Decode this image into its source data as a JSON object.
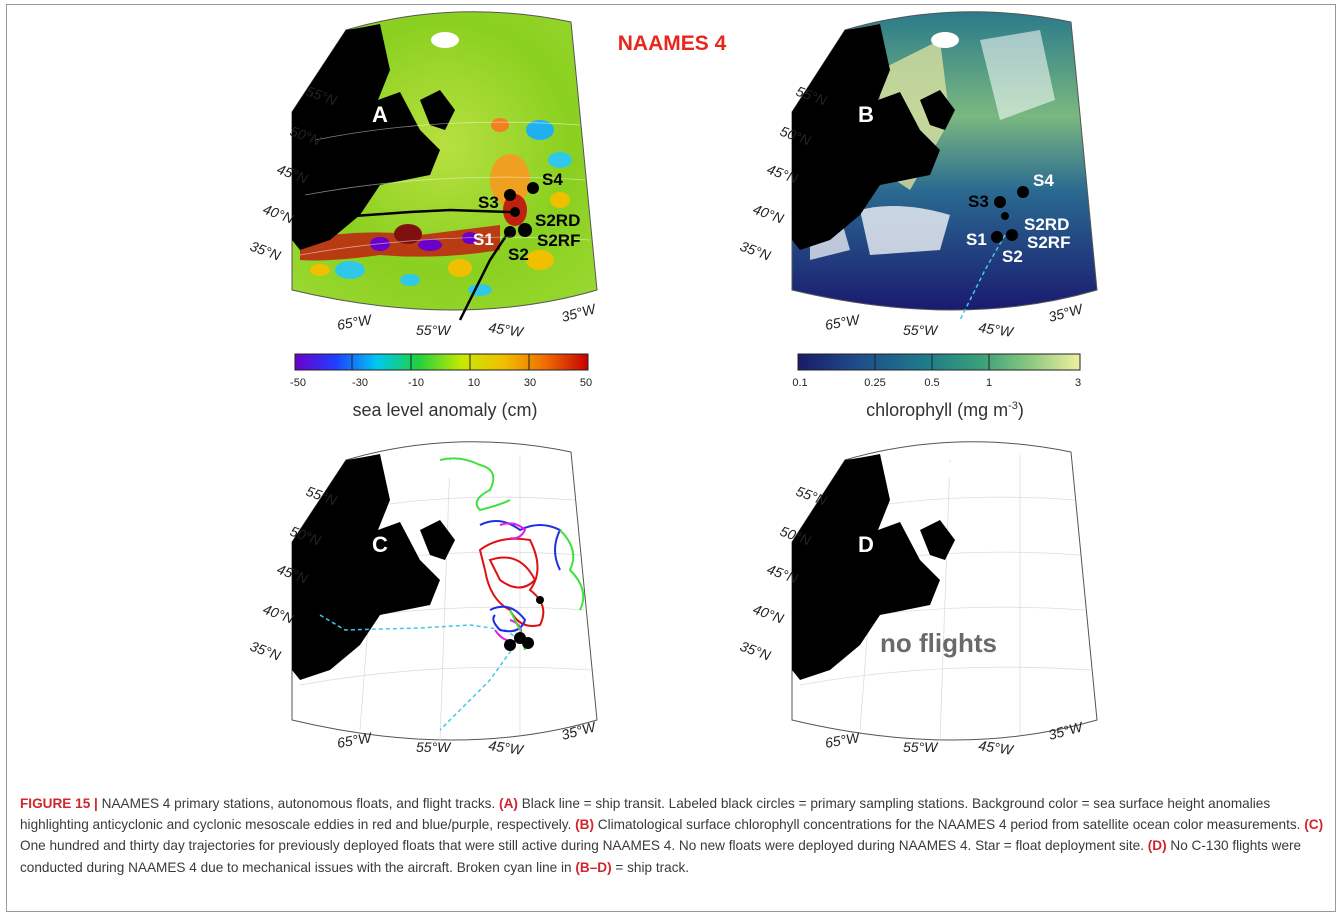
{
  "figure_title": "NAAMES 4",
  "panels": {
    "A": {
      "letter": "A"
    },
    "B": {
      "letter": "B"
    },
    "C": {
      "letter": "C"
    },
    "D": {
      "letter": "D",
      "note": "no flights"
    }
  },
  "lat_labels": [
    "55°N",
    "50°N",
    "45°N",
    "40°N",
    "35°N"
  ],
  "lon_labels": [
    "65°W",
    "55°W",
    "45°W",
    "35°W"
  ],
  "stations_a": [
    "S3",
    "S4",
    "S2RD",
    "S1",
    "S2RF",
    "S2"
  ],
  "stations_b": [
    "S3",
    "S4",
    "S2RD",
    "S1",
    "S2RF",
    "S2"
  ],
  "colorbar_sla": {
    "ticks": [
      "-50",
      "-30",
      "-10",
      "10",
      "30",
      "50"
    ],
    "label": "sea level anomaly (cm)",
    "colors": [
      "#6a00c8",
      "#2040ff",
      "#00c8f0",
      "#20d040",
      "#c8e800",
      "#f0c000",
      "#f07000",
      "#c80000"
    ]
  },
  "colorbar_chl": {
    "ticks": [
      "0.1",
      "0.25",
      "0.5",
      "1",
      "3"
    ],
    "label_main": "chlorophyll (mg m",
    "label_sup": "-3",
    "label_end": ")",
    "colors": [
      "#1a1a6a",
      "#1e4a8a",
      "#1f7a8a",
      "#3aa07a",
      "#8ac880",
      "#f0f0a0"
    ]
  },
  "caption": {
    "figno": "FIGURE 15 |",
    "intro": " NAAMES 4 primary stations, autonomous floats, and flight tracks. ",
    "a_tag": "(A)",
    "a_text": " Black line = ship transit. Labeled black circles = primary sampling stations. Background color = sea surface height anomalies highlighting anticyclonic and cyclonic mesoscale eddies in red and blue/purple, respectively. ",
    "b_tag": "(B)",
    "b_text": " Climatological surface chlorophyll concentrations for the NAAMES 4 period from satellite ocean color measurements. ",
    "c_tag": "(C)",
    "c_text": " One hundred and thirty day trajectories for previously deployed floats that were still active during NAAMES 4. No new floats were deployed during NAAMES 4. Star = float deployment site. ",
    "d_tag": "(D)",
    "d_text": " No C-130 flights were conducted during NAAMES 4 due to mechanical issues with the aircraft. Broken cyan line in ",
    "bd_tag": "(B–D)",
    "end_text": " = ship track."
  },
  "colors": {
    "title_red": "#e8261c",
    "caption_tag": "#d0262e",
    "land": "#000000",
    "ship_track_cyan": "#40c8e8"
  }
}
